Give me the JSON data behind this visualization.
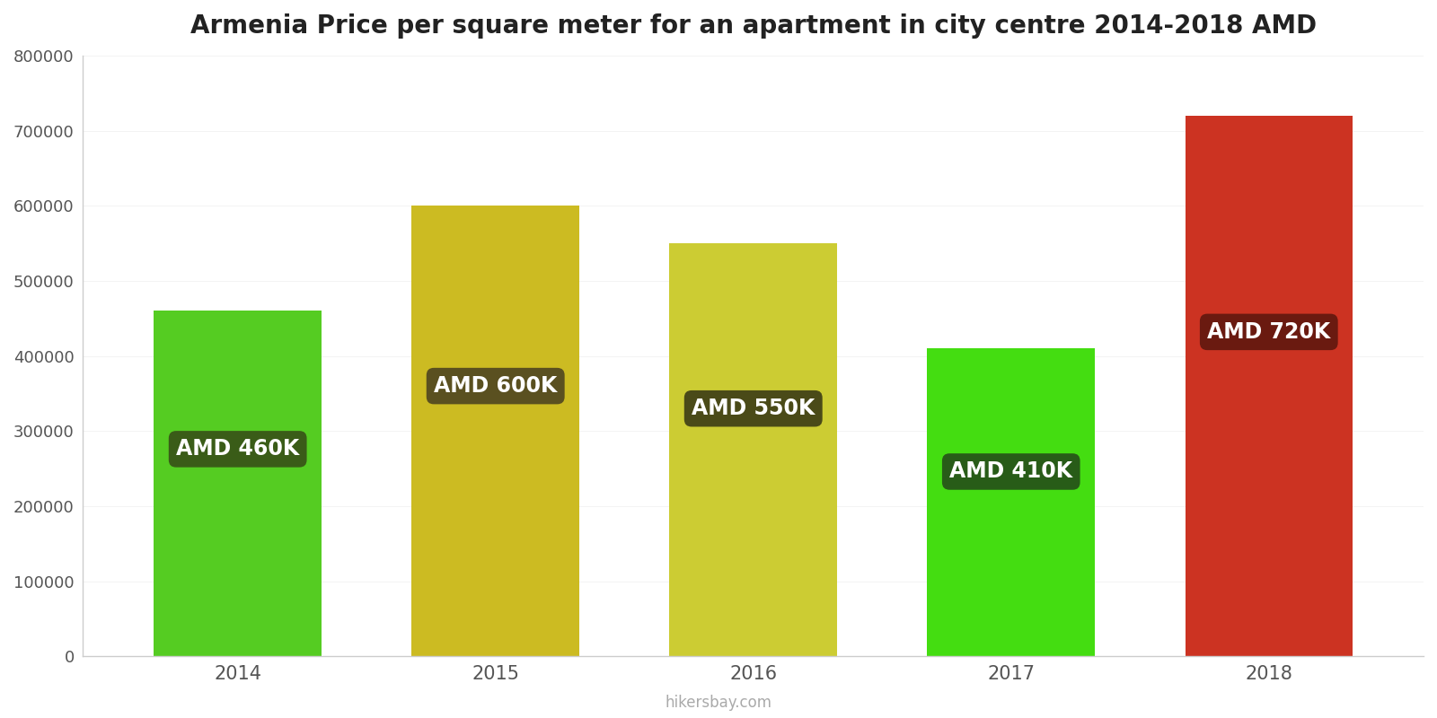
{
  "title": "Armenia Price per square meter for an apartment in city centre 2014-2018 AMD",
  "years": [
    2014,
    2015,
    2016,
    2017,
    2018
  ],
  "values": [
    460000,
    600000,
    550000,
    410000,
    720000
  ],
  "bar_colors": [
    "#55cc22",
    "#ccbb22",
    "#cccc33",
    "#44dd11",
    "#cc3322"
  ],
  "labels": [
    "AMD 460K",
    "AMD 600K",
    "AMD 550K",
    "AMD 410K",
    "AMD 720K"
  ],
  "label_box_colors": [
    "#3a5c18",
    "#5a5020",
    "#4a4a18",
    "#285c18",
    "#6a1a10"
  ],
  "ylim": [
    0,
    800000
  ],
  "yticks": [
    0,
    100000,
    200000,
    300000,
    400000,
    500000,
    600000,
    700000,
    800000
  ],
  "watermark": "hikersbay.com",
  "background_color": "#ffffff",
  "label_font_size": 17,
  "title_font_size": 20
}
